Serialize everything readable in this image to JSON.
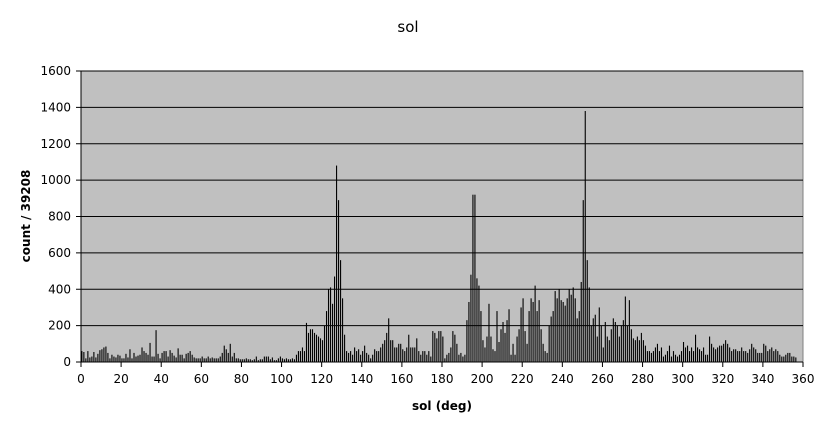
{
  "chart_data": {
    "type": "bar",
    "title": "sol",
    "xlabel": "sol (deg)",
    "ylabel": "count / 39208",
    "xlim": [
      0,
      360
    ],
    "ylim": [
      0,
      1600
    ],
    "xticks": [
      "0",
      "20",
      "40",
      "60",
      "80",
      "100",
      "120",
      "140",
      "160",
      "180",
      "200",
      "220",
      "240",
      "260",
      "280",
      "300",
      "320",
      "340",
      "360"
    ],
    "yticks": [
      "0",
      "200",
      "400",
      "600",
      "800",
      "1000",
      "1200",
      "1400",
      "1600"
    ],
    "grid": true,
    "legend": "none",
    "colors": {
      "plot_bg": "#c0c0c0",
      "bar": "#000000",
      "gridline": "#000000"
    },
    "bin_width": 1,
    "values": [
      60,
      55,
      20,
      60,
      25,
      30,
      55,
      25,
      45,
      65,
      70,
      80,
      85,
      50,
      20,
      40,
      30,
      25,
      40,
      35,
      20,
      20,
      45,
      25,
      70,
      20,
      50,
      30,
      35,
      40,
      80,
      60,
      50,
      40,
      105,
      30,
      30,
      175,
      45,
      20,
      50,
      60,
      60,
      30,
      65,
      50,
      35,
      25,
      75,
      40,
      40,
      20,
      45,
      50,
      60,
      40,
      25,
      20,
      20,
      20,
      30,
      20,
      20,
      30,
      20,
      25,
      20,
      20,
      20,
      30,
      50,
      90,
      70,
      50,
      100,
      30,
      50,
      20,
      20,
      15,
      15,
      15,
      20,
      15,
      15,
      10,
      15,
      30,
      10,
      15,
      15,
      30,
      30,
      30,
      15,
      25,
      10,
      10,
      20,
      30,
      20,
      15,
      20,
      15,
      15,
      20,
      15,
      40,
      60,
      60,
      80,
      60,
      215,
      160,
      180,
      180,
      160,
      150,
      140,
      130,
      120,
      200,
      280,
      400,
      410,
      320,
      470,
      1080,
      890,
      560,
      350,
      150,
      60,
      50,
      60,
      40,
      80,
      60,
      70,
      40,
      60,
      90,
      50,
      40,
      20,
      40,
      70,
      60,
      60,
      80,
      100,
      120,
      160,
      240,
      120,
      120,
      80,
      80,
      100,
      100,
      70,
      60,
      80,
      150,
      80,
      80,
      80,
      130,
      60,
      40,
      60,
      60,
      40,
      60,
      30,
      170,
      160,
      130,
      170,
      170,
      140,
      20,
      40,
      50,
      80,
      170,
      150,
      100,
      40,
      50,
      30,
      40,
      230,
      330,
      480,
      920,
      920,
      460,
      420,
      280,
      120,
      80,
      140,
      320,
      140,
      70,
      60,
      280,
      110,
      180,
      220,
      160,
      230,
      290,
      40,
      100,
      40,
      140,
      180,
      300,
      350,
      170,
      100,
      280,
      350,
      330,
      420,
      280,
      340,
      180,
      100,
      60,
      50,
      200,
      250,
      280,
      390,
      350,
      400,
      340,
      330,
      310,
      350,
      400,
      370,
      410,
      350,
      240,
      280,
      440,
      890,
      1380,
      560,
      410,
      200,
      240,
      260,
      140,
      300,
      200,
      80,
      220,
      140,
      120,
      180,
      240,
      220,
      200,
      140,
      200,
      230,
      360,
      200,
      340,
      180,
      130,
      120,
      140,
      120,
      160,
      120,
      90,
      60,
      60,
      50,
      60,
      80,
      100,
      60,
      80,
      30,
      40,
      60,
      90,
      30,
      60,
      40,
      30,
      40,
      60,
      110,
      80,
      90,
      60,
      80,
      60,
      150,
      80,
      70,
      60,
      80,
      40,
      40,
      140,
      100,
      80,
      70,
      80,
      90,
      90,
      100,
      120,
      100,
      80,
      60,
      70,
      70,
      60,
      60,
      80,
      60,
      60,
      50,
      70,
      100,
      80,
      70,
      50,
      50,
      50,
      100,
      90,
      60,
      70,
      80,
      60,
      70,
      60,
      40,
      30,
      30,
      40,
      50,
      50,
      30,
      30,
      25
    ]
  }
}
